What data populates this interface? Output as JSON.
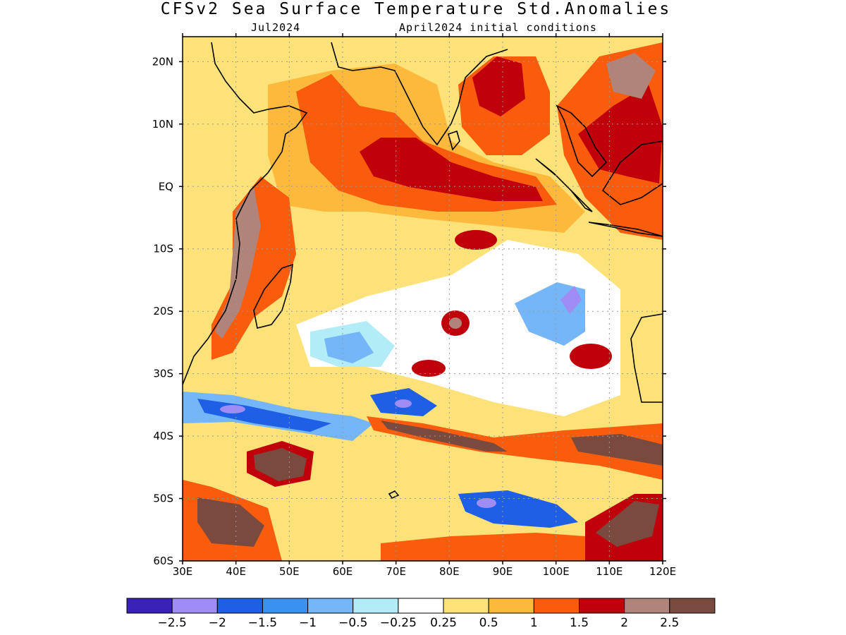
{
  "header": {
    "title": "CFSv2 Sea Surface Temperature Std.Anomalies",
    "valid_month": "Jul2024",
    "initial_conditions": "April2024 initial conditions"
  },
  "map": {
    "lon_range": [
      30,
      120
    ],
    "lat_range": [
      -60,
      24
    ],
    "lon_ticks": [
      {
        "value": 30,
        "label": "30E"
      },
      {
        "value": 40,
        "label": "40E"
      },
      {
        "value": 50,
        "label": "50E"
      },
      {
        "value": 60,
        "label": "60E"
      },
      {
        "value": 70,
        "label": "70E"
      },
      {
        "value": 80,
        "label": "80E"
      },
      {
        "value": 90,
        "label": "90E"
      },
      {
        "value": 100,
        "label": "100E"
      },
      {
        "value": 110,
        "label": "110E"
      },
      {
        "value": 120,
        "label": "120E"
      }
    ],
    "lat_ticks": [
      {
        "value": 20,
        "label": "20N"
      },
      {
        "value": 10,
        "label": "10N"
      },
      {
        "value": 0,
        "label": "EQ"
      },
      {
        "value": -10,
        "label": "10S"
      },
      {
        "value": -20,
        "label": "20S"
      },
      {
        "value": -30,
        "label": "30S"
      },
      {
        "value": -40,
        "label": "40S"
      },
      {
        "value": -50,
        "label": "50S"
      },
      {
        "value": -60,
        "label": "60S"
      }
    ],
    "grid": true
  },
  "colorbar": {
    "colors": [
      "#3a22b8",
      "#9f8cf5",
      "#1f5fe6",
      "#3a91f0",
      "#74b6f7",
      "#b1ecf7",
      "#ffffff",
      "#fde27a",
      "#fdb93b",
      "#fa5c0d",
      "#c0000b",
      "#b0847b",
      "#7a4a3f"
    ],
    "labels": [
      "−2.5",
      "−2",
      "−1.5",
      "−1",
      "−0.5",
      "−0.25",
      "0.25",
      "0.5",
      "1",
      "1.5",
      "2",
      "2.5"
    ]
  }
}
